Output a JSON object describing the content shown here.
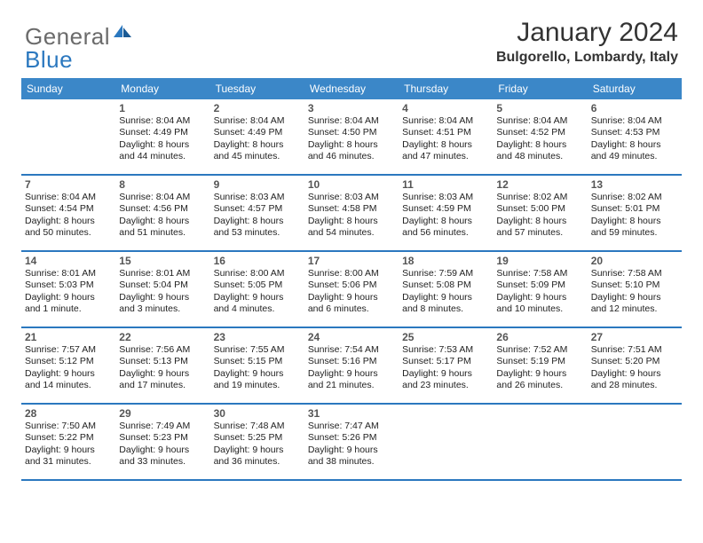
{
  "brand": {
    "part1": "General",
    "part2": "Blue"
  },
  "title": "January 2024",
  "location": "Bulgorello, Lombardy, Italy",
  "colors": {
    "header_bg": "#3b87c8",
    "rule": "#2b78bf",
    "logo_gray": "#6b6b6b",
    "logo_blue": "#2b78bf"
  },
  "day_headers": [
    "Sunday",
    "Monday",
    "Tuesday",
    "Wednesday",
    "Thursday",
    "Friday",
    "Saturday"
  ],
  "weeks": [
    [
      {
        "n": "",
        "r": "",
        "s": "",
        "d": ""
      },
      {
        "n": "1",
        "r": "Sunrise: 8:04 AM",
        "s": "Sunset: 4:49 PM",
        "d": "Daylight: 8 hours and 44 minutes."
      },
      {
        "n": "2",
        "r": "Sunrise: 8:04 AM",
        "s": "Sunset: 4:49 PM",
        "d": "Daylight: 8 hours and 45 minutes."
      },
      {
        "n": "3",
        "r": "Sunrise: 8:04 AM",
        "s": "Sunset: 4:50 PM",
        "d": "Daylight: 8 hours and 46 minutes."
      },
      {
        "n": "4",
        "r": "Sunrise: 8:04 AM",
        "s": "Sunset: 4:51 PM",
        "d": "Daylight: 8 hours and 47 minutes."
      },
      {
        "n": "5",
        "r": "Sunrise: 8:04 AM",
        "s": "Sunset: 4:52 PM",
        "d": "Daylight: 8 hours and 48 minutes."
      },
      {
        "n": "6",
        "r": "Sunrise: 8:04 AM",
        "s": "Sunset: 4:53 PM",
        "d": "Daylight: 8 hours and 49 minutes."
      }
    ],
    [
      {
        "n": "7",
        "r": "Sunrise: 8:04 AM",
        "s": "Sunset: 4:54 PM",
        "d": "Daylight: 8 hours and 50 minutes."
      },
      {
        "n": "8",
        "r": "Sunrise: 8:04 AM",
        "s": "Sunset: 4:56 PM",
        "d": "Daylight: 8 hours and 51 minutes."
      },
      {
        "n": "9",
        "r": "Sunrise: 8:03 AM",
        "s": "Sunset: 4:57 PM",
        "d": "Daylight: 8 hours and 53 minutes."
      },
      {
        "n": "10",
        "r": "Sunrise: 8:03 AM",
        "s": "Sunset: 4:58 PM",
        "d": "Daylight: 8 hours and 54 minutes."
      },
      {
        "n": "11",
        "r": "Sunrise: 8:03 AM",
        "s": "Sunset: 4:59 PM",
        "d": "Daylight: 8 hours and 56 minutes."
      },
      {
        "n": "12",
        "r": "Sunrise: 8:02 AM",
        "s": "Sunset: 5:00 PM",
        "d": "Daylight: 8 hours and 57 minutes."
      },
      {
        "n": "13",
        "r": "Sunrise: 8:02 AM",
        "s": "Sunset: 5:01 PM",
        "d": "Daylight: 8 hours and 59 minutes."
      }
    ],
    [
      {
        "n": "14",
        "r": "Sunrise: 8:01 AM",
        "s": "Sunset: 5:03 PM",
        "d": "Daylight: 9 hours and 1 minute."
      },
      {
        "n": "15",
        "r": "Sunrise: 8:01 AM",
        "s": "Sunset: 5:04 PM",
        "d": "Daylight: 9 hours and 3 minutes."
      },
      {
        "n": "16",
        "r": "Sunrise: 8:00 AM",
        "s": "Sunset: 5:05 PM",
        "d": "Daylight: 9 hours and 4 minutes."
      },
      {
        "n": "17",
        "r": "Sunrise: 8:00 AM",
        "s": "Sunset: 5:06 PM",
        "d": "Daylight: 9 hours and 6 minutes."
      },
      {
        "n": "18",
        "r": "Sunrise: 7:59 AM",
        "s": "Sunset: 5:08 PM",
        "d": "Daylight: 9 hours and 8 minutes."
      },
      {
        "n": "19",
        "r": "Sunrise: 7:58 AM",
        "s": "Sunset: 5:09 PM",
        "d": "Daylight: 9 hours and 10 minutes."
      },
      {
        "n": "20",
        "r": "Sunrise: 7:58 AM",
        "s": "Sunset: 5:10 PM",
        "d": "Daylight: 9 hours and 12 minutes."
      }
    ],
    [
      {
        "n": "21",
        "r": "Sunrise: 7:57 AM",
        "s": "Sunset: 5:12 PM",
        "d": "Daylight: 9 hours and 14 minutes."
      },
      {
        "n": "22",
        "r": "Sunrise: 7:56 AM",
        "s": "Sunset: 5:13 PM",
        "d": "Daylight: 9 hours and 17 minutes."
      },
      {
        "n": "23",
        "r": "Sunrise: 7:55 AM",
        "s": "Sunset: 5:15 PM",
        "d": "Daylight: 9 hours and 19 minutes."
      },
      {
        "n": "24",
        "r": "Sunrise: 7:54 AM",
        "s": "Sunset: 5:16 PM",
        "d": "Daylight: 9 hours and 21 minutes."
      },
      {
        "n": "25",
        "r": "Sunrise: 7:53 AM",
        "s": "Sunset: 5:17 PM",
        "d": "Daylight: 9 hours and 23 minutes."
      },
      {
        "n": "26",
        "r": "Sunrise: 7:52 AM",
        "s": "Sunset: 5:19 PM",
        "d": "Daylight: 9 hours and 26 minutes."
      },
      {
        "n": "27",
        "r": "Sunrise: 7:51 AM",
        "s": "Sunset: 5:20 PM",
        "d": "Daylight: 9 hours and 28 minutes."
      }
    ],
    [
      {
        "n": "28",
        "r": "Sunrise: 7:50 AM",
        "s": "Sunset: 5:22 PM",
        "d": "Daylight: 9 hours and 31 minutes."
      },
      {
        "n": "29",
        "r": "Sunrise: 7:49 AM",
        "s": "Sunset: 5:23 PM",
        "d": "Daylight: 9 hours and 33 minutes."
      },
      {
        "n": "30",
        "r": "Sunrise: 7:48 AM",
        "s": "Sunset: 5:25 PM",
        "d": "Daylight: 9 hours and 36 minutes."
      },
      {
        "n": "31",
        "r": "Sunrise: 7:47 AM",
        "s": "Sunset: 5:26 PM",
        "d": "Daylight: 9 hours and 38 minutes."
      },
      {
        "n": "",
        "r": "",
        "s": "",
        "d": ""
      },
      {
        "n": "",
        "r": "",
        "s": "",
        "d": ""
      },
      {
        "n": "",
        "r": "",
        "s": "",
        "d": ""
      }
    ]
  ]
}
